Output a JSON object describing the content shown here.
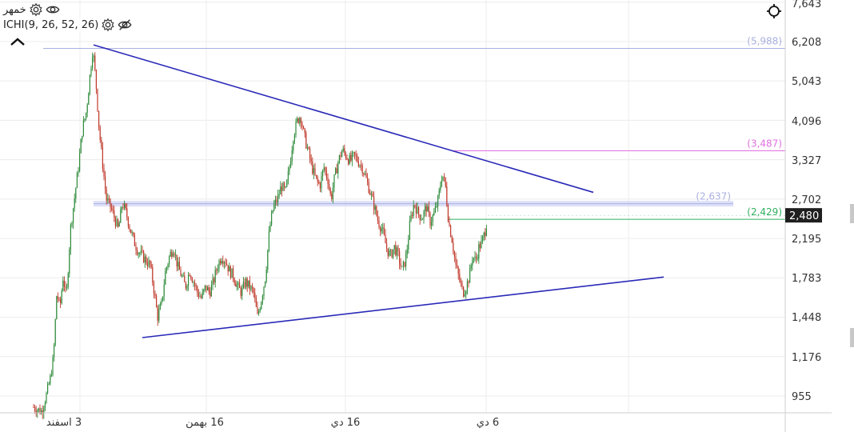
{
  "header": {
    "symbol": "خمهر",
    "indicator": "ICHI(9, 26, 52, 26)"
  },
  "icons": {
    "settings": "gear-icon",
    "visibility": "eye-icon",
    "hidden": "eye-off-icon",
    "collapse": "chevron-up-icon",
    "crosshair": "crosshair-icon"
  },
  "chart_data": {
    "type": "candlestick",
    "title": "",
    "xlabel": "",
    "ylabel": "",
    "y_scale": "log",
    "ylim": [
      800,
      7643
    ],
    "y_ticks": [
      "7,643",
      "6,208",
      "5,043",
      "4,096",
      "3,327",
      "2,702",
      "2,195",
      "1,783",
      "1,448",
      "1,176",
      "955"
    ],
    "y_tick_values": [
      7643,
      6208,
      5043,
      4096,
      3327,
      2702,
      2195,
      1783,
      1448,
      1176,
      955
    ],
    "x_ticks": [
      "3 اسفند",
      "16 بهمن",
      "16 دي",
      "6 دي"
    ],
    "last_price": 2480,
    "last_price_label": "2,480",
    "levels": [
      {
        "label": "(5,988)",
        "value": 5988,
        "color": "#aab0e0"
      },
      {
        "label": "(3,487)",
        "value": 3487,
        "color": "#e070e0"
      },
      {
        "label": "(2,637)",
        "value": 2637,
        "color": "#aab0e0"
      },
      {
        "label": "(2,429)",
        "value": 2429,
        "color": "#30b060"
      }
    ],
    "trendlines": [
      {
        "name": "",
        "points": [
          [
            117,
            6100
          ],
          [
            742,
            2800
          ]
        ],
        "color": "#2a2ab8"
      },
      {
        "name": "",
        "points": [
          [
            178,
            1300
          ],
          [
            830,
            1790
          ]
        ],
        "color": "#2a2ab8"
      }
    ],
    "price_path": [
      [
        42,
        900
      ],
      [
        52,
        880
      ],
      [
        58,
        960
      ],
      [
        63,
        1050
      ],
      [
        67,
        1180
      ],
      [
        71,
        1650
      ],
      [
        75,
        1520
      ],
      [
        79,
        1800
      ],
      [
        83,
        1600
      ],
      [
        88,
        2300
      ],
      [
        93,
        2700
      ],
      [
        98,
        3200
      ],
      [
        103,
        3900
      ],
      [
        108,
        4300
      ],
      [
        113,
        5300
      ],
      [
        116,
        6000
      ],
      [
        120,
        5000
      ],
      [
        124,
        3900
      ],
      [
        128,
        3300
      ],
      [
        133,
        2700
      ],
      [
        138,
        2600
      ],
      [
        143,
        2450
      ],
      [
        148,
        2300
      ],
      [
        153,
        2650
      ],
      [
        158,
        2500
      ],
      [
        163,
        2300
      ],
      [
        168,
        2150
      ],
      [
        173,
        2050
      ],
      [
        178,
        2000
      ],
      [
        183,
        1950
      ],
      [
        188,
        1900
      ],
      [
        193,
        1650
      ],
      [
        197,
        1450
      ],
      [
        202,
        1550
      ],
      [
        207,
        1850
      ],
      [
        212,
        2000
      ],
      [
        217,
        2100
      ],
      [
        222,
        1900
      ],
      [
        227,
        1800
      ],
      [
        232,
        1700
      ],
      [
        237,
        1850
      ],
      [
        242,
        1750
      ],
      [
        247,
        1650
      ],
      [
        252,
        1600
      ],
      [
        257,
        1700
      ],
      [
        262,
        1650
      ],
      [
        267,
        1750
      ],
      [
        272,
        1900
      ],
      [
        277,
        2000
      ],
      [
        282,
        1950
      ],
      [
        287,
        1850
      ],
      [
        292,
        1800
      ],
      [
        297,
        1700
      ],
      [
        302,
        1650
      ],
      [
        307,
        1750
      ],
      [
        312,
        1700
      ],
      [
        317,
        1650
      ],
      [
        322,
        1450
      ],
      [
        327,
        1600
      ],
      [
        332,
        1800
      ],
      [
        337,
        2300
      ],
      [
        342,
        2600
      ],
      [
        347,
        2700
      ],
      [
        352,
        2900
      ],
      [
        357,
        2800
      ],
      [
        362,
        3200
      ],
      [
        367,
        3800
      ],
      [
        372,
        4100
      ],
      [
        376,
        4200
      ],
      [
        380,
        3800
      ],
      [
        385,
        3500
      ],
      [
        390,
        3200
      ],
      [
        395,
        3000
      ],
      [
        400,
        2900
      ],
      [
        405,
        3200
      ],
      [
        410,
        3000
      ],
      [
        414,
        2700
      ],
      [
        418,
        3000
      ],
      [
        423,
        3300
      ],
      [
        428,
        3500
      ],
      [
        433,
        3400
      ],
      [
        438,
        3300
      ],
      [
        443,
        3400
      ],
      [
        448,
        3300
      ],
      [
        453,
        3200
      ],
      [
        458,
        3000
      ],
      [
        463,
        2800
      ],
      [
        468,
        2600
      ],
      [
        473,
        2400
      ],
      [
        478,
        2300
      ],
      [
        483,
        2100
      ],
      [
        488,
        2000
      ],
      [
        493,
        2100
      ],
      [
        498,
        2000
      ],
      [
        503,
        1850
      ],
      [
        508,
        2000
      ],
      [
        513,
        2400
      ],
      [
        518,
        2650
      ],
      [
        523,
        2500
      ],
      [
        528,
        2450
      ],
      [
        533,
        2600
      ],
      [
        538,
        2400
      ],
      [
        543,
        2500
      ],
      [
        548,
        2700
      ],
      [
        553,
        3100
      ],
      [
        557,
        2900
      ],
      [
        561,
        2400
      ],
      [
        565,
        2200
      ],
      [
        570,
        1900
      ],
      [
        575,
        1750
      ],
      [
        579,
        1650
      ],
      [
        583,
        1700
      ],
      [
        587,
        1800
      ],
      [
        591,
        2000
      ],
      [
        595,
        1950
      ],
      [
        599,
        2100
      ],
      [
        603,
        2150
      ],
      [
        607,
        2300
      ],
      [
        610,
        2480
      ]
    ],
    "grid": true,
    "legend": "none"
  }
}
